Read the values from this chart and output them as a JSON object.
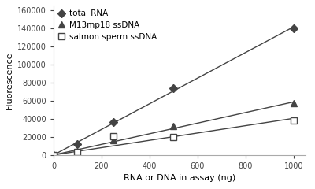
{
  "title": "",
  "xlabel": "RNA or DNA in assay (ng)",
  "ylabel": "Fluorescence",
  "xlim": [
    0,
    1050
  ],
  "ylim": [
    0,
    165000
  ],
  "xticks": [
    0,
    200,
    400,
    600,
    800,
    1000
  ],
  "yticks": [
    0,
    20000,
    40000,
    60000,
    80000,
    100000,
    120000,
    140000,
    160000
  ],
  "series": [
    {
      "label": "total RNA",
      "x": [
        0,
        100,
        250,
        500,
        1000
      ],
      "y": [
        0,
        12000,
        36000,
        74000,
        140000
      ],
      "color": "#444444",
      "marker": "D",
      "markersize": 5,
      "linewidth": 1.0,
      "markerfacecolor": "#444444",
      "markeredgecolor": "#444444"
    },
    {
      "label": "M13mp18 ssDNA",
      "x": [
        0,
        250,
        500,
        1000
      ],
      "y": [
        0,
        16000,
        32000,
        57000
      ],
      "color": "#444444",
      "marker": "^",
      "markersize": 6,
      "linewidth": 1.0,
      "markerfacecolor": "#444444",
      "markeredgecolor": "#444444"
    },
    {
      "label": "salmon sperm ssDNA",
      "x": [
        0,
        100,
        250,
        500,
        1000
      ],
      "y": [
        0,
        3000,
        21000,
        20000,
        38000
      ],
      "color": "#444444",
      "marker": "s",
      "markersize": 6,
      "linewidth": 1.0,
      "markerfacecolor": "white",
      "markeredgecolor": "#444444"
    }
  ],
  "legend_fontsize": 7.5,
  "tick_fontsize": 7,
  "label_fontsize": 8
}
